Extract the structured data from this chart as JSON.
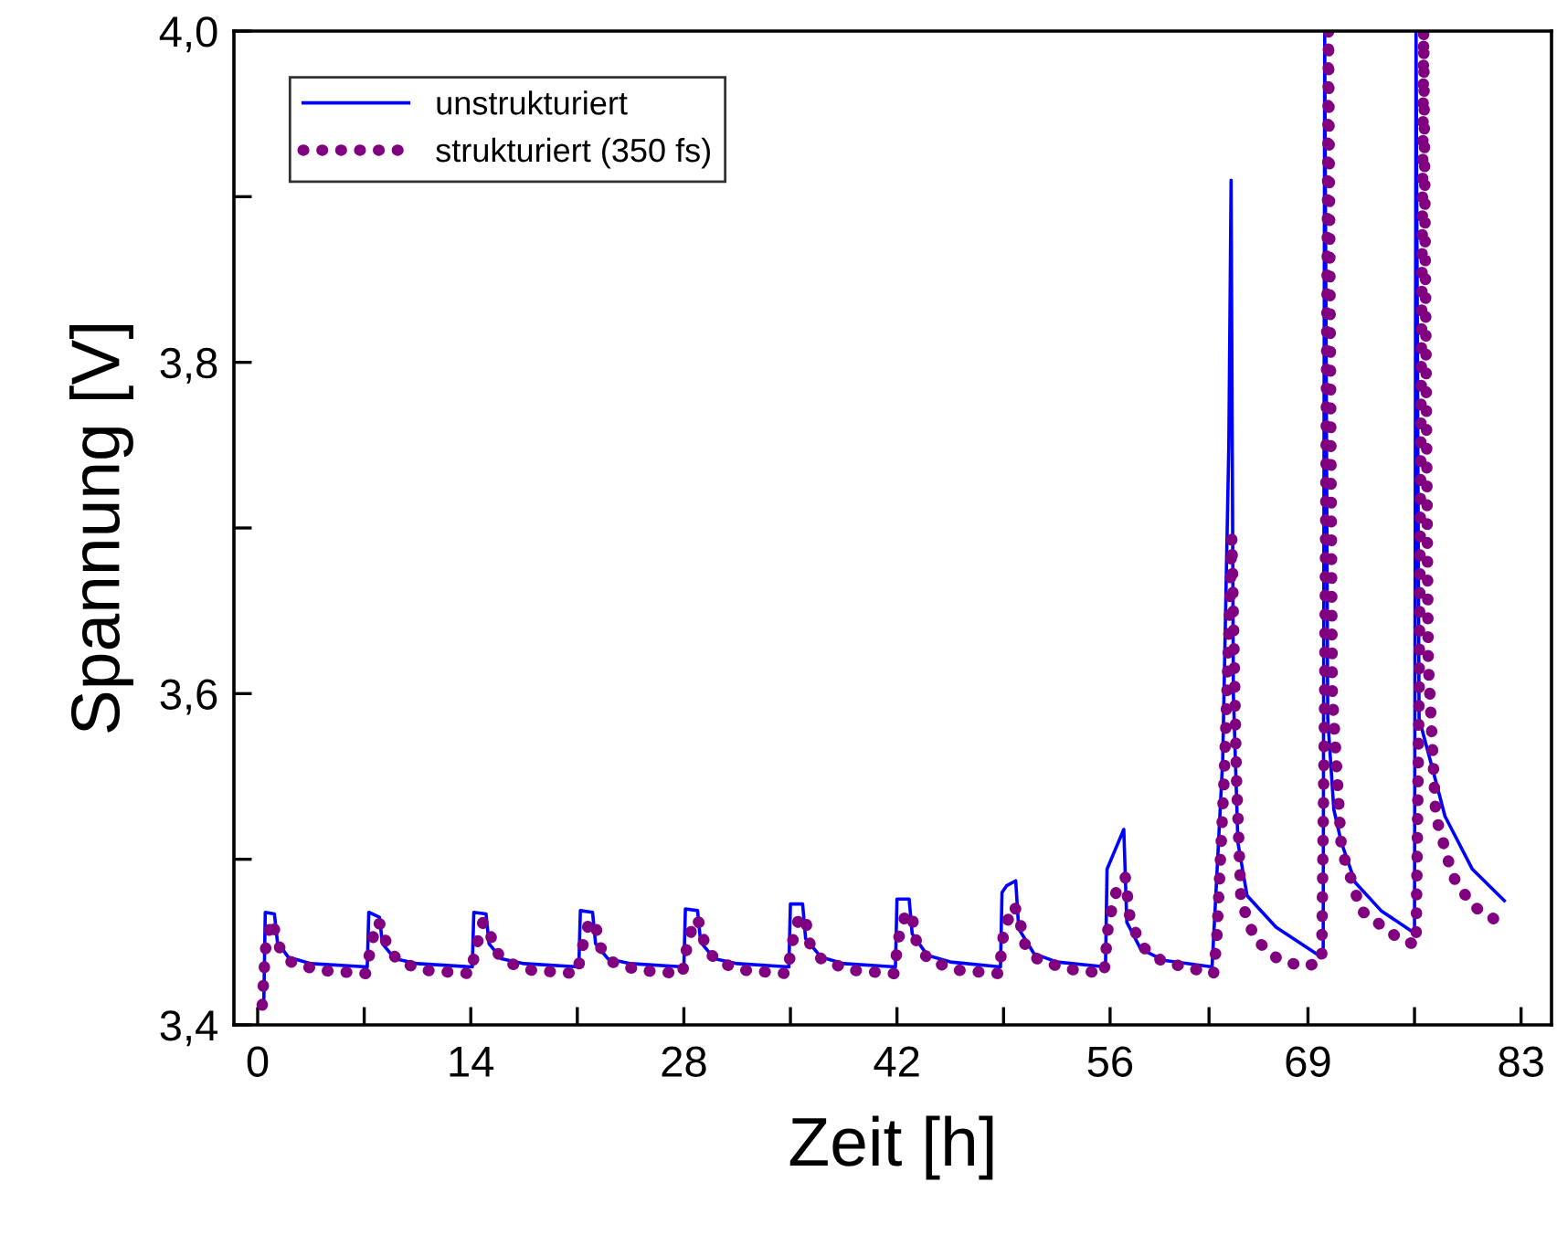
{
  "chart_data": {
    "type": "line",
    "xlabel": "Zeit [h]",
    "ylabel": "Spannung [V]",
    "xlim": [
      -1.56,
      85.0
    ],
    "ylim": [
      3.4,
      4.0
    ],
    "xticks": [
      0,
      {
        "value": 7,
        "label": null
      },
      14,
      {
        "value": 21,
        "label": null
      },
      28,
      {
        "value": 35,
        "label": null
      },
      42,
      {
        "value": 49,
        "label": null
      },
      56,
      {
        "value": 62.5,
        "label": null
      },
      69,
      {
        "value": 76,
        "label": null
      },
      83
    ],
    "yticks": [
      {
        "value": 3.4,
        "label": "3,4"
      },
      {
        "value": 3.5,
        "label": null
      },
      {
        "value": 3.6,
        "label": "3,6"
      },
      {
        "value": 3.7,
        "label": null
      },
      {
        "value": 3.8,
        "label": "3,8"
      },
      {
        "value": 3.9,
        "label": null
      },
      {
        "value": 4.0,
        "label": "4,0"
      }
    ],
    "grid": false,
    "legend": "top left",
    "marker": "none",
    "series": [
      {
        "name": "unstrukturiert",
        "color": "#0000ff",
        "line_style": "solid",
        "x": [
          0.4,
          0.5,
          1.1,
          1.3,
          2.0,
          3.5,
          7.2,
          7.3,
          8.0,
          8.2,
          9.0,
          10.5,
          14.1,
          14.2,
          15.0,
          15.2,
          16.0,
          17.5,
          21.1,
          21.2,
          22.0,
          22.2,
          23.0,
          24.5,
          28.0,
          28.1,
          28.9,
          29.1,
          30.0,
          31.5,
          34.9,
          35.0,
          35.8,
          36.0,
          37.0,
          38.5,
          41.9,
          42.0,
          42.8,
          43.0,
          44.0,
          45.5,
          48.8,
          48.9,
          49.2,
          49.8,
          50.0,
          51.0,
          52.5,
          55.7,
          55.8,
          56.3,
          56.9,
          57.1,
          58.0,
          59.5,
          62.7,
          62.9,
          63.4,
          63.8,
          63.95,
          64.1,
          64.4,
          65.0,
          66.9,
          69.7,
          70.0,
          70.1,
          70.3,
          70.7,
          71.2,
          72.1,
          73.8,
          75.9,
          76.0,
          76.1,
          76.3,
          77.2,
          78.0,
          79.8,
          81.9
        ],
        "values": [
          3.412,
          3.468,
          3.467,
          3.45,
          3.441,
          3.437,
          3.435,
          3.468,
          3.465,
          3.449,
          3.44,
          3.437,
          3.435,
          3.468,
          3.467,
          3.449,
          3.44,
          3.437,
          3.435,
          3.469,
          3.468,
          3.449,
          3.44,
          3.437,
          3.435,
          3.47,
          3.469,
          3.45,
          3.44,
          3.437,
          3.435,
          3.473,
          3.473,
          3.452,
          3.441,
          3.437,
          3.435,
          3.476,
          3.476,
          3.455,
          3.442,
          3.438,
          3.435,
          3.48,
          3.484,
          3.487,
          3.458,
          3.443,
          3.438,
          3.435,
          3.494,
          3.505,
          3.518,
          3.462,
          3.446,
          3.439,
          3.435,
          3.47,
          3.56,
          3.75,
          3.91,
          3.6,
          3.51,
          3.478,
          3.459,
          3.442,
          3.443,
          4.0,
          3.585,
          3.53,
          3.51,
          3.486,
          3.469,
          3.456,
          3.456,
          4.0,
          3.585,
          3.554,
          3.526,
          3.494,
          3.475
        ]
      },
      {
        "name": "strukturiert (350 fs)",
        "color": "#800080",
        "line_style": "dotted",
        "x": [
          0.3,
          0.5,
          0.9,
          1.2,
          1.5,
          2.2,
          4.0,
          7.1,
          7.4,
          7.8,
          8.2,
          8.5,
          9.3,
          11.0,
          14.0,
          14.3,
          14.8,
          15.2,
          15.5,
          16.3,
          18.0,
          21.0,
          21.3,
          21.8,
          22.2,
          22.5,
          23.3,
          25.0,
          27.9,
          28.2,
          28.7,
          29.1,
          29.4,
          30.2,
          32.0,
          34.8,
          35.1,
          35.6,
          36.0,
          36.3,
          37.1,
          39.0,
          41.8,
          42.1,
          42.6,
          43.0,
          43.3,
          44.1,
          46.0,
          48.7,
          49.0,
          49.6,
          50.0,
          50.3,
          51.2,
          53.0,
          55.6,
          55.9,
          56.5,
          57.0,
          57.3,
          58.0,
          59.5,
          62.8,
          63.0,
          63.5,
          64.0,
          64.3,
          64.6,
          65.5,
          67.0,
          68.7,
          69.9,
          70.1,
          70.35,
          70.6,
          71.2,
          72.5,
          74.7,
          76.1,
          76.3,
          76.6,
          76.9,
          77.4,
          78.5,
          79.8,
          82.1
        ],
        "values": [
          3.412,
          3.445,
          3.463,
          3.455,
          3.445,
          3.438,
          3.433,
          3.431,
          3.445,
          3.462,
          3.46,
          3.447,
          3.438,
          3.433,
          3.431,
          3.445,
          3.462,
          3.459,
          3.446,
          3.438,
          3.433,
          3.431,
          3.446,
          3.463,
          3.46,
          3.447,
          3.438,
          3.433,
          3.431,
          3.447,
          3.464,
          3.461,
          3.447,
          3.438,
          3.433,
          3.431,
          3.449,
          3.466,
          3.463,
          3.448,
          3.439,
          3.433,
          3.431,
          3.452,
          3.468,
          3.465,
          3.449,
          3.439,
          3.433,
          3.431,
          3.455,
          3.472,
          3.468,
          3.45,
          3.44,
          3.434,
          3.431,
          3.462,
          3.484,
          3.489,
          3.465,
          3.448,
          3.438,
          3.431,
          3.45,
          3.55,
          3.694,
          3.55,
          3.475,
          3.452,
          3.44,
          3.435,
          3.438,
          3.6,
          4.0,
          3.6,
          3.506,
          3.469,
          3.454,
          3.448,
          3.6,
          4.0,
          3.62,
          3.526,
          3.49,
          3.472,
          3.459
        ]
      }
    ]
  }
}
